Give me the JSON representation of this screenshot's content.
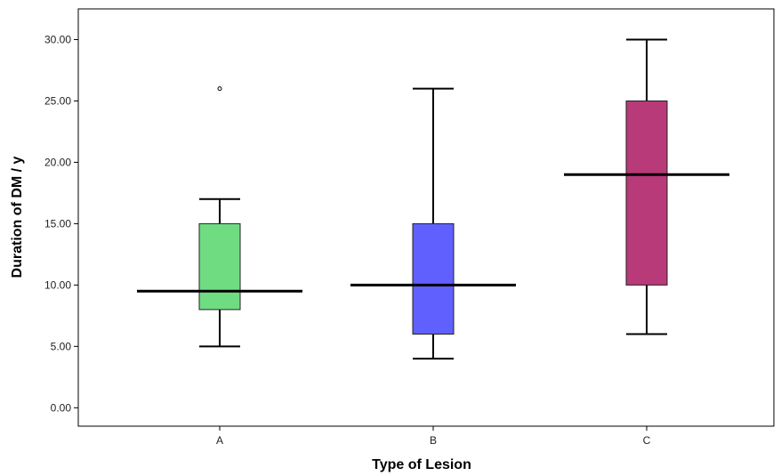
{
  "chart_data": {
    "type": "boxplot",
    "title": "",
    "xlabel": "Type of Lesion",
    "ylabel": "Duration of DM / y",
    "ylim": [
      -1.5,
      32.5
    ],
    "yticks": [
      0,
      5,
      10,
      15,
      20,
      25,
      30
    ],
    "ytick_labels": [
      "0.00",
      "5.00",
      "10.00",
      "15.00",
      "20.00",
      "25.00",
      "30.00"
    ],
    "categories": [
      "A",
      "B",
      "C"
    ],
    "boxes": [
      {
        "category": "A",
        "min": 5,
        "q1": 8,
        "median": 9.5,
        "q3": 15,
        "max": 17,
        "outliers": [
          26
        ],
        "color": "#6fdc82"
      },
      {
        "category": "B",
        "min": 4,
        "q1": 6,
        "median": 10,
        "q3": 15,
        "max": 26,
        "outliers": [],
        "color": "#6060ff"
      },
      {
        "category": "C",
        "min": 6,
        "q1": 10,
        "median": 19,
        "q3": 25,
        "max": 30,
        "outliers": [],
        "color": "#b83a78"
      }
    ],
    "grid": false,
    "legend": "none"
  }
}
